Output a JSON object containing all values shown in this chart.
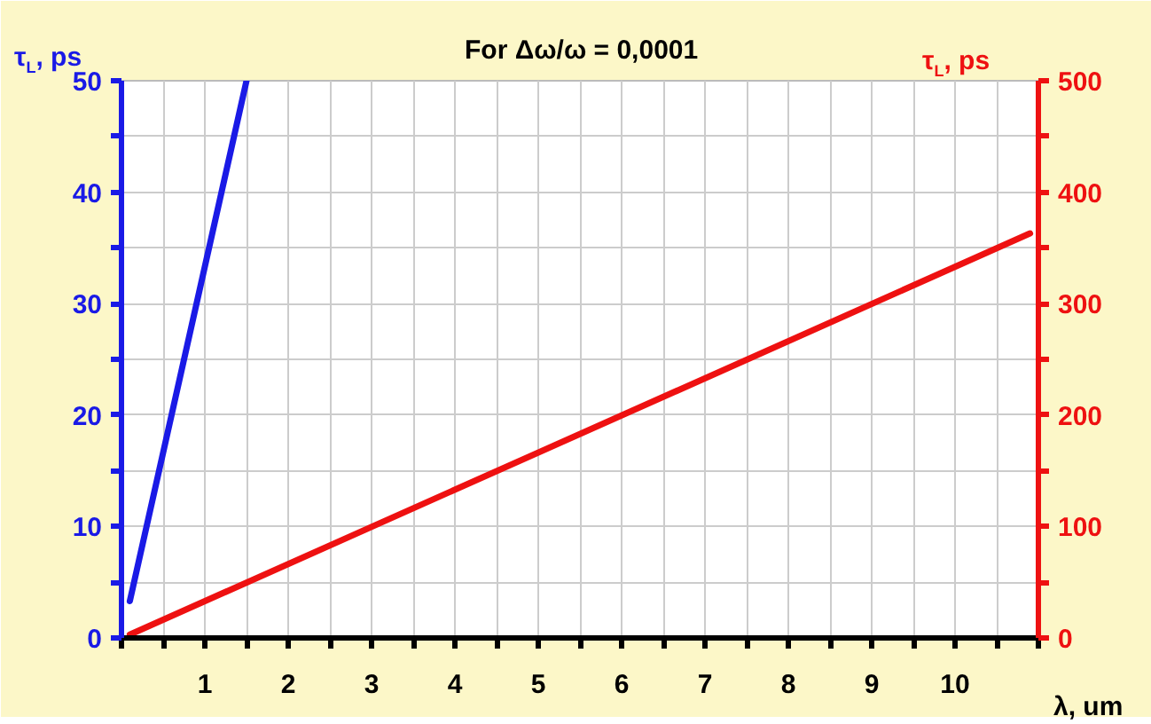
{
  "chart_data": {
    "type": "line",
    "title": "For  Δω/ω = 0,0001",
    "xlabel": "λ, um",
    "ylabel": "τ$_{L}$, ps",
    "y2label": "τ$_{L}$, ps",
    "xlim": [
      0,
      11
    ],
    "ylim": [
      0,
      50
    ],
    "y2lim": [
      0,
      500
    ],
    "xticks": [
      {
        "value": 0,
        "label": null
      },
      {
        "value": 0.5,
        "label": null
      },
      1,
      {
        "value": 1.5,
        "label": null
      },
      2,
      {
        "value": 2.5,
        "label": null
      },
      3,
      {
        "value": 3.5,
        "label": null
      },
      4,
      {
        "value": 4.5,
        "label": null
      },
      5,
      {
        "value": 5.5,
        "label": null
      },
      6,
      {
        "value": 6.5,
        "label": null
      },
      7,
      {
        "value": 7.5,
        "label": null
      },
      8,
      {
        "value": 8.5,
        "label": null
      },
      9,
      {
        "value": 9.5,
        "label": null
      },
      10,
      {
        "value": 10.5,
        "label": null
      },
      {
        "value": 11,
        "label": null
      }
    ],
    "yticks": [
      0,
      {
        "value": 5,
        "label": null
      },
      10,
      {
        "value": 15,
        "label": null
      },
      20,
      {
        "value": 25,
        "label": null
      },
      30,
      {
        "value": 35,
        "label": null
      },
      40,
      {
        "value": 45,
        "label": null
      },
      50
    ],
    "y2ticks": [
      0,
      {
        "value": 50,
        "label": null
      },
      100,
      {
        "value": 150,
        "label": null
      },
      200,
      {
        "value": 250,
        "label": null
      },
      300,
      {
        "value": 350,
        "label": null
      },
      400,
      {
        "value": 450,
        "label": null
      },
      500
    ],
    "grid": true,
    "line_style": "solid",
    "series": [
      {
        "color": "#1a1ae6",
        "x": [
          0.1,
          1.5
        ],
        "values": [
          3.3,
          50
        ]
      },
      {
        "color": "#ee1111",
        "x": [
          0.1,
          10.9
        ],
        "values": [
          3,
          363
        ],
        "axis": "y2"
      }
    ]
  }
}
